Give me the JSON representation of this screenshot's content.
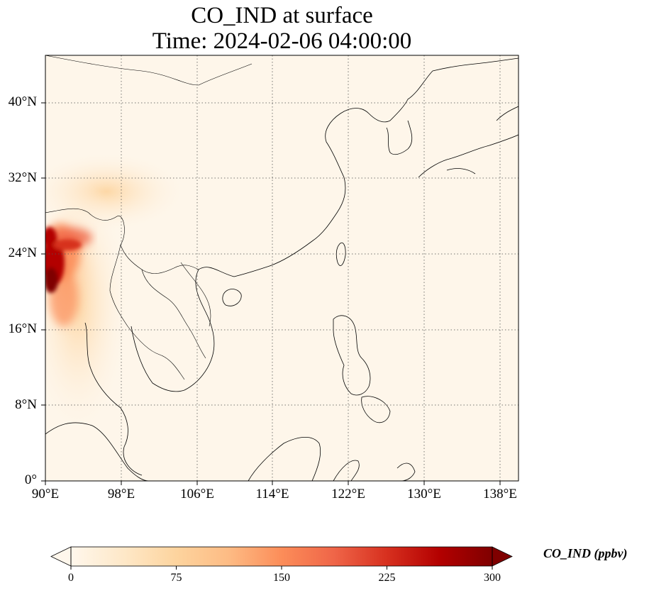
{
  "figure": {
    "title_line1": "CO_IND at surface",
    "title_line2": "Time: 2024-02-06 04:00:00"
  },
  "map": {
    "projection": "PlateCarree",
    "lon_range": [
      90,
      140
    ],
    "lat_range": [
      0,
      45
    ],
    "gridlines": "dotted",
    "lon_ticks": [
      "90°E",
      "98°E",
      "106°E",
      "114°E",
      "122°E",
      "130°E",
      "138°E"
    ],
    "lat_ticks": [
      "0°",
      "8°N",
      "16°N",
      "24°N",
      "32°N",
      "40°N"
    ],
    "colormap": "OrRd",
    "field": "CO_IND",
    "high_region": "Myanmar / Northeast India (~90-98°E, 18-28°N)"
  },
  "colorbar": {
    "label": "CO_IND (ppbv)",
    "min": 0,
    "max": 300,
    "extend": "both",
    "ticks": [
      "0",
      "75",
      "150",
      "225",
      "300"
    ],
    "colors": [
      "#fff7ec",
      "#fee8c8",
      "#fdd49e",
      "#fdbb84",
      "#fc8d59",
      "#ef6548",
      "#d7301f",
      "#b30000",
      "#7f0000"
    ]
  }
}
